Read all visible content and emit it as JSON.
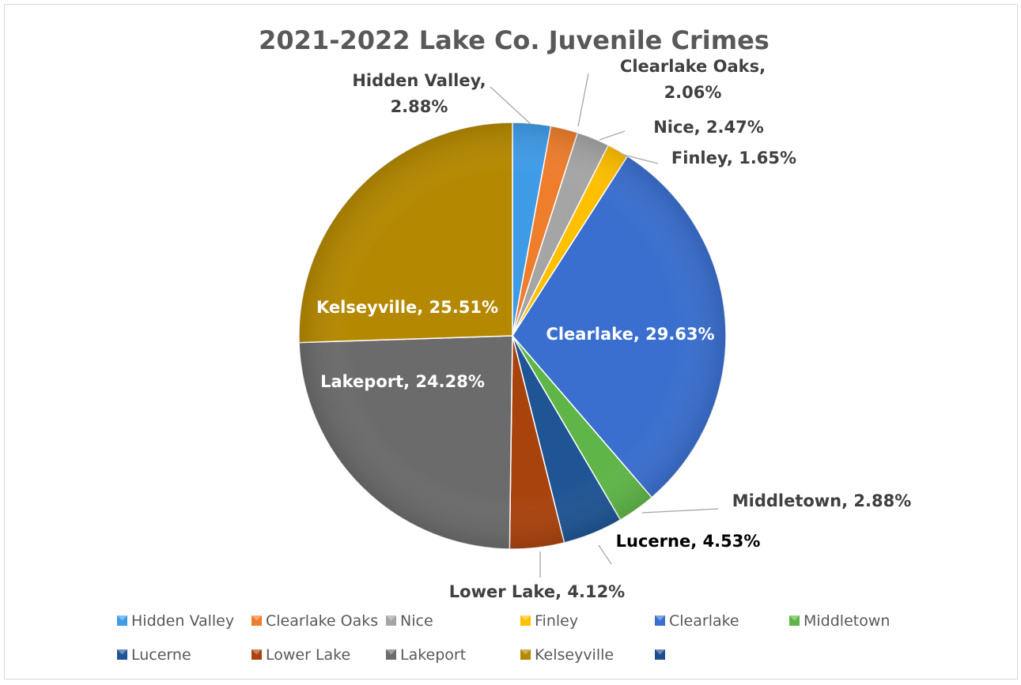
{
  "chart_data": {
    "type": "pie",
    "title": "2021-2022 Lake Co. Juvenile Crimes",
    "unit": "%",
    "slices": [
      {
        "name": "Hidden Valley",
        "value": 2.88,
        "label": "Hidden Valley, 2.88%",
        "label_lines": [
          "Hidden Valley,",
          "2.88%"
        ],
        "color": "#3f9be6"
      },
      {
        "name": "Clearlake Oaks",
        "value": 2.06,
        "label": "Clearlake Oaks, 2.06%",
        "label_lines": [
          "Clearlake Oaks,",
          "2.06%"
        ],
        "color": "#ee7d2c"
      },
      {
        "name": "Nice",
        "value": 2.47,
        "label": "Nice, 2.47%",
        "label_lines": [
          "Nice, 2.47%"
        ],
        "color": "#a5a5a5"
      },
      {
        "name": "Finley",
        "value": 1.65,
        "label": "Finley, 1.65%",
        "label_lines": [
          "Finley, 1.65%"
        ],
        "color": "#ffc000"
      },
      {
        "name": "Clearlake",
        "value": 29.63,
        "label": "Clearlake, 29.63%",
        "label_lines": [
          "Clearlake, 29.63%"
        ],
        "color": "#3a6fcf"
      },
      {
        "name": "Middletown",
        "value": 2.88,
        "label": "Middletown, 2.88%",
        "label_lines": [
          "Middletown, 2.88%"
        ],
        "color": "#5fb548"
      },
      {
        "name": "Lucerne",
        "value": 4.53,
        "label": "Lucerne, 4.53%",
        "label_lines": [
          "Lucerne, 4.53%"
        ],
        "color": "#1f5594"
      },
      {
        "name": "Lower Lake",
        "value": 4.12,
        "label": "Lower Lake, 4.12%",
        "label_lines": [
          "Lower Lake, 4.12%"
        ],
        "color": "#a9430e"
      },
      {
        "name": "Lakeport",
        "value": 24.28,
        "label": "Lakeport, 24.28%",
        "label_lines": [
          "Lakeport, 24.28%"
        ],
        "color": "#6b6b6b"
      },
      {
        "name": "Kelseyville",
        "value": 25.51,
        "label": "Kelseyville, 25.51%",
        "label_lines": [
          "Kelseyville, 25.51%"
        ],
        "color": "#b48800"
      }
    ],
    "legend": {
      "position": "bottom",
      "entries": [
        {
          "name": "Hidden Valley",
          "color": "#3f9be6"
        },
        {
          "name": "Clearlake Oaks",
          "color": "#ee7d2c"
        },
        {
          "name": "Nice",
          "color": "#a5a5a5"
        },
        {
          "name": "Finley",
          "color": "#ffc000"
        },
        {
          "name": "Clearlake",
          "color": "#3a6fcf"
        },
        {
          "name": "Middletown",
          "color": "#5fb548"
        },
        {
          "name": "Lucerne",
          "color": "#1f5594"
        },
        {
          "name": "Lower Lake",
          "color": "#a9430e"
        },
        {
          "name": "Lakeport",
          "color": "#6b6b6b"
        },
        {
          "name": "Kelseyville",
          "color": "#b48800"
        },
        {
          "name": "",
          "color": "#1f4e8c"
        }
      ]
    }
  }
}
